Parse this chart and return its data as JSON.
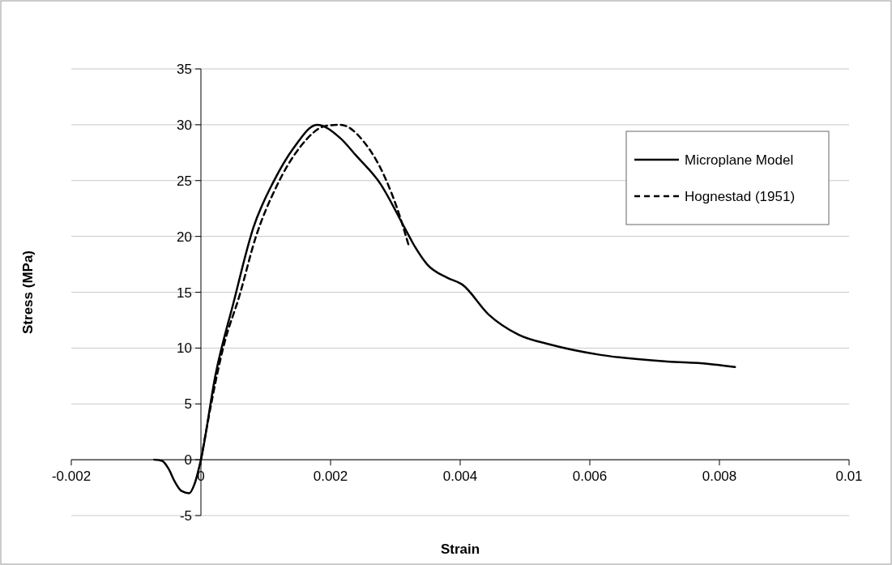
{
  "chart_data": {
    "type": "line",
    "xlabel": "Strain",
    "ylabel": "Stress (MPa)",
    "xlim": [
      -0.002,
      0.01
    ],
    "xticks": [
      -0.002,
      0,
      0.002,
      0.004,
      0.006,
      0.008,
      0.01
    ],
    "ylim": [
      -5,
      35
    ],
    "yticks": [
      -5,
      0,
      5,
      10,
      15,
      20,
      25,
      30,
      35
    ],
    "grid": "y",
    "legend": "top right",
    "marker": "none",
    "series": [
      {
        "name": "Microplane Model",
        "color": "#000000",
        "line_style": "solid",
        "x": [
          -0.00072,
          -0.0006,
          -0.0005,
          -0.0004,
          -0.0003,
          -0.00018,
          -0.0001,
          0,
          0.000225,
          0.0005,
          0.00081,
          0.00112,
          0.00144,
          0.00179,
          0.00215,
          0.0024,
          0.00277,
          0.00314,
          0.00331,
          0.00349,
          0.0038,
          0.00403,
          0.00444,
          0.0049,
          0.0054,
          0.00615,
          0.00719,
          0.00781,
          0.00824
        ],
        "values": [
          0,
          -0.1,
          -0.8,
          -2.0,
          -2.8,
          -3.0,
          -2.2,
          0,
          7.6,
          14,
          20.8,
          24.9,
          28,
          30,
          28.8,
          27.2,
          24.7,
          20.8,
          19,
          17.5,
          16.3,
          15.7,
          13,
          11.2,
          10.3,
          9.4,
          8.8,
          8.6,
          8.3
        ]
      },
      {
        "name": "Hognestad (1951)",
        "color": "#000000",
        "line_style": "dashed",
        "x": [
          0,
          0.00036,
          0.00059,
          0.00085,
          0.00116,
          0.00153,
          0.00193,
          0.00215,
          0.00251,
          0.00283,
          0.00304,
          0.0032
        ],
        "values": [
          0,
          10.4,
          14.6,
          20,
          24.4,
          28,
          29.9,
          30,
          28.5,
          25.4,
          22.3,
          19.3
        ]
      }
    ]
  }
}
